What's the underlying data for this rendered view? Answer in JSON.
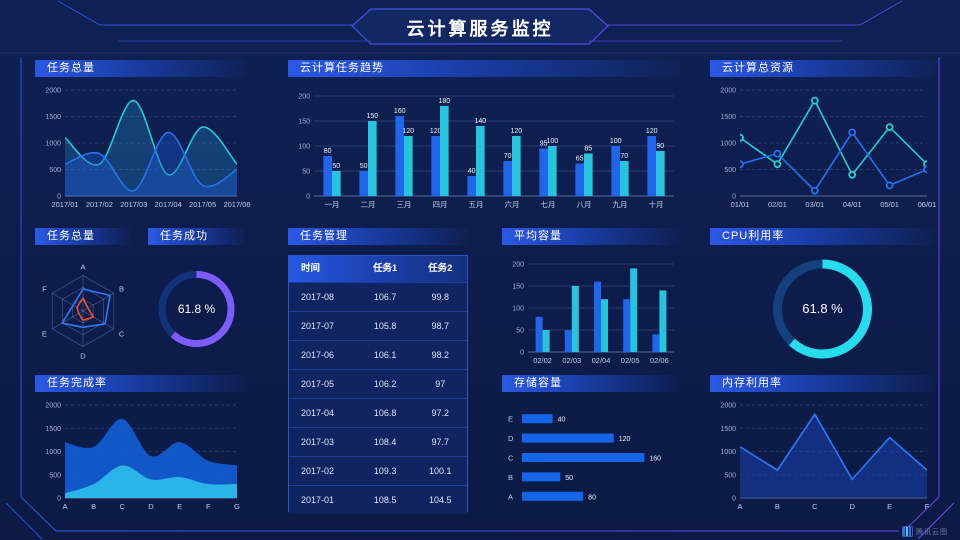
{
  "page_title": "云计算服务监控",
  "watermark": "腾讯云图",
  "theme": {
    "background": "#0d1c4a",
    "header_gradient_from": "#2b59e6",
    "blue": "#1f66ea",
    "cyan": "#27c4dd",
    "purple": "#7c5cfa",
    "red": "#ee4f2e",
    "axis_text": "#9db1d8"
  },
  "panels": {
    "tasks_total_top": {
      "title": "任务总量"
    },
    "task_trend": {
      "title": "云计算任务趋势"
    },
    "total_resources": {
      "title": "云计算总资源"
    },
    "tasks_radar": {
      "title": "任务总量"
    },
    "task_success": {
      "title": "任务成功"
    },
    "task_mgmt": {
      "title": "任务管理"
    },
    "avg_capacity": {
      "title": "平均容量"
    },
    "cpu_usage": {
      "title": "CPU利用率"
    },
    "completion_rate": {
      "title": "任务完成率"
    },
    "storage": {
      "title": "存储容量"
    },
    "memory_usage": {
      "title": "内存利用率"
    }
  },
  "chart_data": [
    {
      "id": "tasks_total_top",
      "type": "area",
      "title": "任务总量",
      "smooth": true,
      "grid": "dashed",
      "x": [
        "2017/01",
        "2017/02",
        "2017/03",
        "2017/04",
        "2017/05",
        "2017/06"
      ],
      "ylim": [
        0,
        2000
      ],
      "yticks": [
        0,
        500,
        1000,
        1500,
        2000
      ],
      "series": [
        {
          "name": "series-cyan",
          "color": "#26cbd4",
          "fill": "rgba(35,150,215,0.28)",
          "values": [
            1100,
            600,
            1800,
            400,
            1300,
            600
          ]
        },
        {
          "name": "series-blue",
          "color": "#2472f0",
          "fill": "rgba(28,90,210,0.38)",
          "values": [
            600,
            800,
            100,
            1200,
            200,
            500
          ]
        }
      ]
    },
    {
      "id": "task_trend",
      "type": "bar",
      "title": "云计算任务趋势",
      "labels": true,
      "categories": [
        "一月",
        "二月",
        "三月",
        "四月",
        "五月",
        "六月",
        "七月",
        "八月",
        "九月",
        "十月"
      ],
      "ylim": [
        0,
        200
      ],
      "yticks": [
        0,
        50,
        100,
        150,
        200
      ],
      "series": [
        {
          "name": "任务1",
          "color": "#1f66ea",
          "values": [
            80,
            50,
            160,
            120,
            40,
            70,
            95,
            65,
            100,
            120
          ]
        },
        {
          "name": "任务2",
          "color": "#27c4dd",
          "values": [
            50,
            150,
            120,
            180,
            140,
            120,
            100,
            85,
            70,
            90
          ]
        }
      ]
    },
    {
      "id": "total_resources",
      "type": "line",
      "title": "云计算总资源",
      "markers": true,
      "grid": "dashed",
      "x": [
        "01/01",
        "02/01",
        "03/01",
        "04/01",
        "05/01",
        "06/01"
      ],
      "ylim": [
        0,
        2000
      ],
      "yticks": [
        0,
        500,
        1000,
        1500,
        2000
      ],
      "series": [
        {
          "name": "series-cyan",
          "color": "#26d0cb",
          "values": [
            1100,
            600,
            1800,
            400,
            1300,
            600
          ]
        },
        {
          "name": "series-blue",
          "color": "#2472f0",
          "values": [
            600,
            800,
            100,
            1200,
            200,
            500
          ]
        }
      ]
    },
    {
      "id": "tasks_radar",
      "type": "radar",
      "title": "任务总量",
      "max": 100,
      "axes": [
        "A",
        "B",
        "C",
        "D",
        "E",
        "F"
      ],
      "series": [
        {
          "name": "blue",
          "color": "#2b7bf5",
          "values": [
            62,
            88,
            72,
            46,
            68,
            32
          ]
        },
        {
          "name": "red",
          "color": "#ee4f2e",
          "values": [
            36,
            16,
            34,
            26,
            14,
            20
          ]
        }
      ]
    },
    {
      "id": "task_success",
      "type": "gauge",
      "title": "任务成功",
      "value": 61.8,
      "text": "61.8 %",
      "color": "#7c5cfa",
      "track": "#13327c"
    },
    {
      "id": "task_mgmt",
      "type": "table",
      "title": "任务管理",
      "headers": [
        "时间",
        "任务1",
        "任务2"
      ],
      "rows": [
        [
          "2017-08",
          "106.7",
          "99.8"
        ],
        [
          "2017-07",
          "105.8",
          "98.7"
        ],
        [
          "2017-06",
          "106.1",
          "98.2"
        ],
        [
          "2017-05",
          "106.2",
          "97"
        ],
        [
          "2017-04",
          "106.8",
          "97.2"
        ],
        [
          "2017-03",
          "108.4",
          "97.7"
        ],
        [
          "2017-02",
          "109.3",
          "100.1"
        ],
        [
          "2017-01",
          "108.5",
          "104.5"
        ]
      ]
    },
    {
      "id": "avg_capacity",
      "type": "bar",
      "title": "平均容量",
      "labels": false,
      "categories": [
        "02/02",
        "02/03",
        "02/04",
        "02/05",
        "02/06"
      ],
      "ylim": [
        0,
        200
      ],
      "yticks": [
        0,
        50,
        100,
        150,
        200
      ],
      "series": [
        {
          "name": "series-blue",
          "color": "#1f66ea",
          "values": [
            80,
            50,
            160,
            120,
            40
          ]
        },
        {
          "name": "series-cyan",
          "color": "#27c4dd",
          "values": [
            50,
            150,
            120,
            190,
            140
          ]
        }
      ]
    },
    {
      "id": "cpu_usage",
      "type": "gauge",
      "title": "CPU利用率",
      "value": 61.8,
      "text": "61.8 %",
      "color": "#27dcec",
      "track": "#14407e"
    },
    {
      "id": "completion_rate",
      "type": "area",
      "title": "任务完成率",
      "smooth": true,
      "grid": "dashed",
      "x": [
        "A",
        "B",
        "C",
        "D",
        "E",
        "F",
        "G"
      ],
      "ylim": [
        0,
        2000
      ],
      "yticks": [
        0,
        500,
        1000,
        1500,
        2000
      ],
      "series": [
        {
          "name": "layer-blue",
          "color": "#1159cf",
          "fill": "rgba(19,92,210,0.92)",
          "noline": true,
          "values": [
            1200,
            1100,
            1700,
            900,
            1200,
            800,
            700
          ]
        },
        {
          "name": "layer-cyan",
          "color": "#2cb9e9",
          "fill": "rgba(44,185,233,0.95)",
          "noline": true,
          "values": [
            100,
            300,
            700,
            400,
            450,
            300,
            300
          ]
        }
      ]
    },
    {
      "id": "storage",
      "type": "hbar",
      "title": "存储容量",
      "labels": true,
      "xmax": 170,
      "color": "#1565e8",
      "categories": [
        "E",
        "D",
        "C",
        "B",
        "A"
      ],
      "values": [
        40,
        120,
        160,
        50,
        80
      ]
    },
    {
      "id": "memory_usage",
      "type": "area",
      "title": "内存利用率",
      "smooth": false,
      "grid": "dashed",
      "x": [
        "A",
        "B",
        "C",
        "D",
        "E",
        "F"
      ],
      "ylim": [
        0,
        2000
      ],
      "yticks": [
        0,
        500,
        1000,
        1500,
        2000
      ],
      "series": [
        {
          "name": "series-blue",
          "color": "#2979fa",
          "fill": "rgba(23,68,185,0.5)",
          "values": [
            1100,
            600,
            1800,
            400,
            1300,
            600
          ]
        }
      ]
    }
  ]
}
